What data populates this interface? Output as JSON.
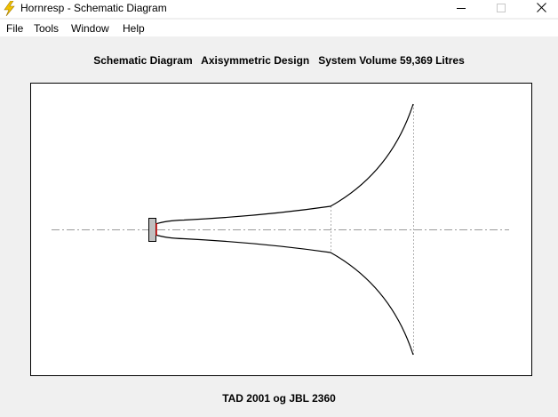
{
  "window": {
    "title": "Hornresp - Schematic Diagram",
    "icon": "lightning-bolt-icon",
    "controls": [
      "minimize-icon",
      "maximize-icon",
      "close-icon"
    ]
  },
  "menu": {
    "items": [
      {
        "label": "File"
      },
      {
        "label": "Tools"
      },
      {
        "label": "Window"
      },
      {
        "label": "Help"
      }
    ]
  },
  "header": {
    "text": "Schematic Diagram   Axisymmetric Design   System Volume 59,369 Litres"
  },
  "footer": {
    "text": "TAD 2001 og JBL 2360"
  },
  "colors": {
    "window_bg": "#f0f0f0",
    "canvas_bg": "#ffffff",
    "driver_fill": "#c0c0c0",
    "driver_diaphragm": "#cc0000",
    "axis_line": "#999999",
    "horn_outline": "#000000"
  }
}
